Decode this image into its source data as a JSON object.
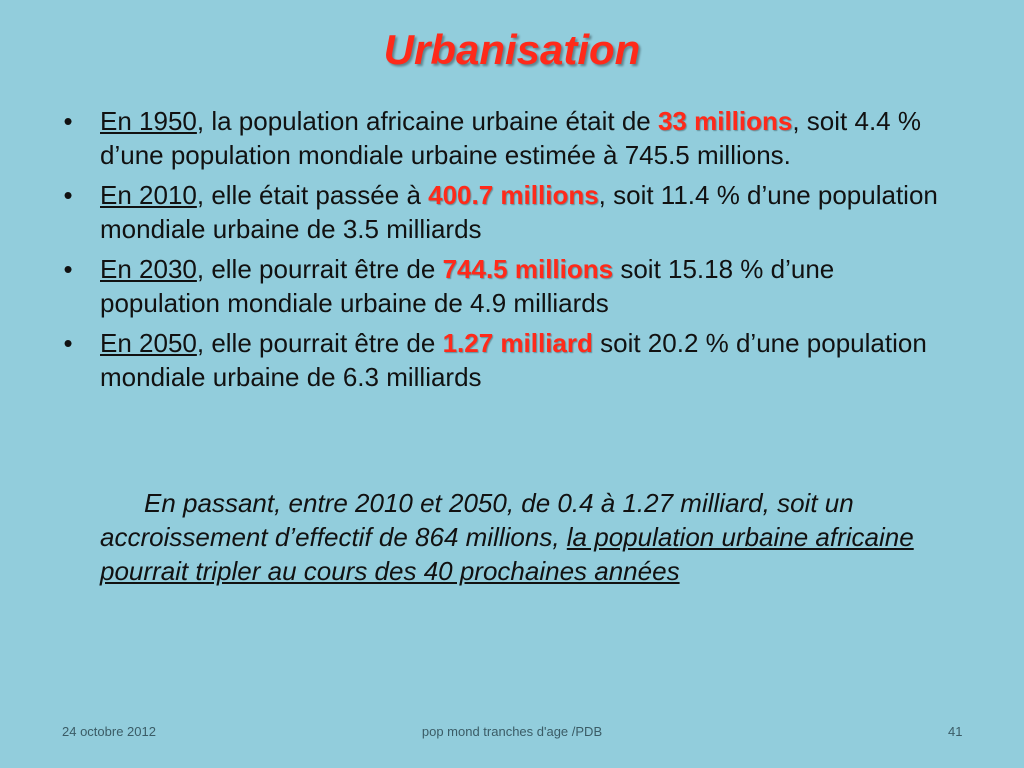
{
  "title": "Urbanisation",
  "bullets": [
    {
      "year": "En 1950",
      "text1": ", la population africaine urbaine était de ",
      "highlight": "33 millions",
      "text2": ", soit 4.4 % d’une population mondiale urbaine estimée à 745.5 millions."
    },
    {
      "year": "En 2010",
      "text1": ", elle était passée à ",
      "highlight": "400.7 millions",
      "text2": ", soit 11.4 % d’une population mondiale urbaine de 3.5 milliards"
    },
    {
      "year": "En 2030",
      "text1": ", elle pourrait être de ",
      "highlight": "744.5 millions",
      "text2": " soit 15.18  % d’une population mondiale urbaine de 4.9 milliards"
    },
    {
      "year": "En 2050",
      "text1": ", elle pourrait être de ",
      "highlight": "1.27 milliard",
      "text2": " soit 20.2 % d’une population mondiale urbaine de 6.3 milliards"
    }
  ],
  "conclusion": {
    "text": "En passant, entre 2010 et 2050, de 0.4 à 1.27 milliard, soit un accroissement d’effectif de 864 millions, ",
    "underlined": "la population urbaine africaine pourrait tripler au cours des 40 prochaines années"
  },
  "footer": {
    "date": "24 octobre 2012",
    "center": "pop mond  tranches d'age /PDB",
    "page": "41"
  },
  "colors": {
    "background": "#92cddc",
    "accent": "#ff2a1a"
  }
}
